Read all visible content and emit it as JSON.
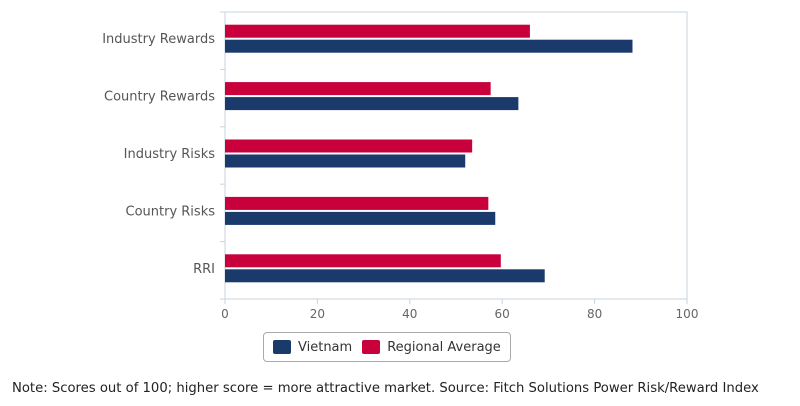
{
  "chart_data": {
    "type": "bar",
    "orientation": "horizontal",
    "categories": [
      "Industry Rewards",
      "Country Rewards",
      "Industry Risks",
      "Country Risks",
      "RRI"
    ],
    "series": [
      {
        "name": "Regional Average",
        "color": "#c8003c",
        "values": [
          66,
          57.5,
          53.5,
          57,
          59.7
        ]
      },
      {
        "name": "Vietnam",
        "color": "#1a3a6b",
        "values": [
          88.2,
          63.5,
          52,
          58.5,
          69.2
        ]
      }
    ],
    "xlim": [
      0,
      100
    ],
    "xticks": [
      "0",
      "20",
      "40",
      "60",
      "80",
      "100"
    ],
    "grid": false,
    "legend_position": "bottom-center",
    "legend": [
      {
        "label": "Vietnam",
        "color": "#1a3a6b"
      },
      {
        "label": "Regional Average",
        "color": "#c8003c"
      }
    ]
  },
  "note": "Note: Scores out of 100; higher score = more attractive market. Source: Fitch Solutions Power Risk/Reward Index"
}
